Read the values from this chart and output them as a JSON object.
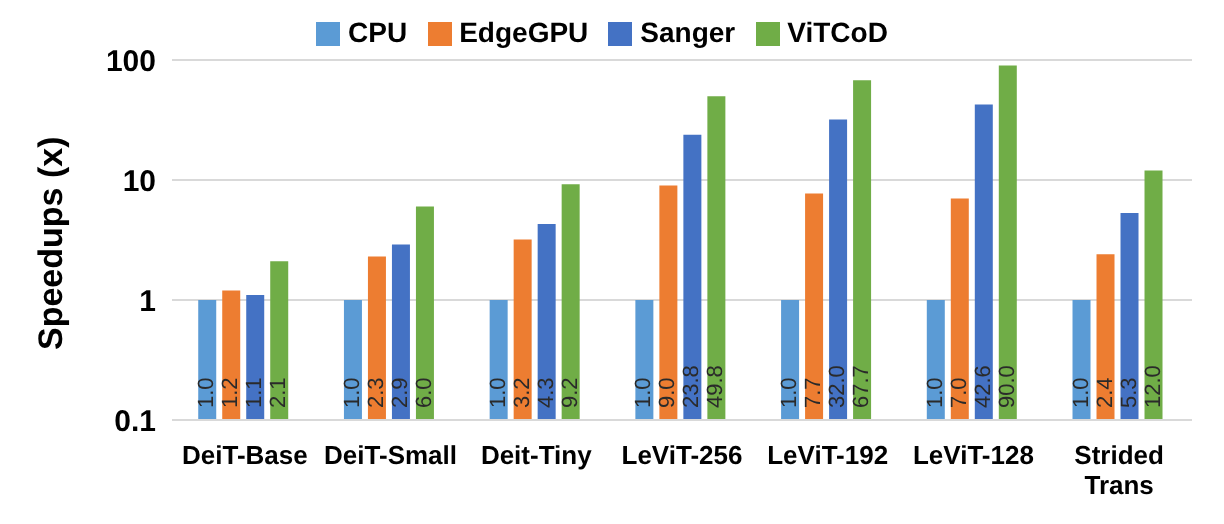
{
  "chart_data": {
    "type": "bar",
    "ylabel": "Speedups (x)",
    "categories": [
      "DeiT-Base",
      "DeiT-Small",
      "Deit-Tiny",
      "LeViT-256",
      "LeViT-192",
      "LeViT-128",
      "Strided Trans"
    ],
    "series": [
      {
        "name": "CPU",
        "color": "#5b9bd5",
        "values": [
          1.0,
          1.0,
          1.0,
          1.0,
          1.0,
          1.0,
          1.0
        ],
        "value_labels": [
          "1.0",
          "1.0",
          "1.0",
          "1.0",
          "1.0",
          "1.0",
          "1.0"
        ]
      },
      {
        "name": "EdgeGPU",
        "color": "#ed7d31",
        "values": [
          1.2,
          2.3,
          3.2,
          9.0,
          7.7,
          7.0,
          2.4
        ],
        "value_labels": [
          "1.2",
          "2.3",
          "3.2",
          "9.0",
          "7.7",
          "7.0",
          "2.4"
        ]
      },
      {
        "name": "Sanger",
        "color": "#4472c4",
        "values": [
          1.1,
          2.9,
          4.3,
          23.8,
          32.0,
          42.6,
          5.3
        ],
        "value_labels": [
          "1.1",
          "2.9",
          "4.3",
          "23.8",
          "32.0",
          "42.6",
          "5.3"
        ]
      },
      {
        "name": "ViTCoD",
        "color": "#70ad47",
        "values": [
          2.1,
          6.0,
          9.2,
          49.8,
          67.7,
          90.0,
          12.0
        ],
        "value_labels": [
          "2.1",
          "6.0",
          "9.2",
          "49.8",
          "67.7",
          "90.0",
          "12.0"
        ]
      }
    ],
    "log": "y",
    "ylim": [
      0.1,
      100
    ],
    "yticks": [
      0.1,
      1,
      10,
      100
    ],
    "grid": "y",
    "legend": "top"
  }
}
